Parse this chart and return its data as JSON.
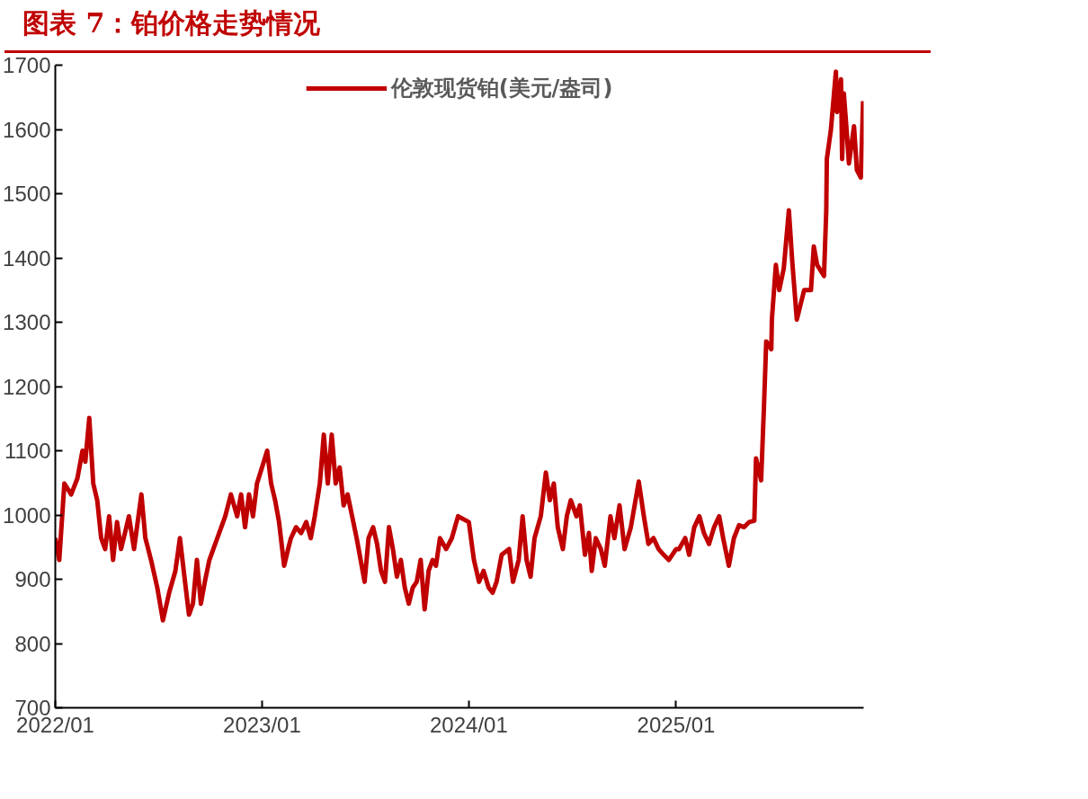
{
  "chart_data": {
    "type": "line",
    "title": "图表 7：铂价格走势情况",
    "x": [
      "2022-01-01",
      "2022-01-08",
      "2022-01-17",
      "2022-01-29",
      "2022-02-09",
      "2022-02-18",
      "2022-02-23",
      "2022-03-02",
      "2022-03-09",
      "2022-03-16",
      "2022-03-23",
      "2022-03-30",
      "2022-04-06",
      "2022-04-13",
      "2022-04-20",
      "2022-04-27",
      "2022-05-04",
      "2022-05-11",
      "2022-05-20",
      "2022-06-02",
      "2022-06-09",
      "2022-06-19",
      "2022-06-30",
      "2022-07-10",
      "2022-07-21",
      "2022-08-01",
      "2022-08-09",
      "2022-08-18",
      "2022-08-25",
      "2022-09-01",
      "2022-09-08",
      "2022-09-15",
      "2022-09-22",
      "2022-09-30",
      "2022-10-07",
      "2022-10-14",
      "2022-10-21",
      "2022-10-28",
      "2022-11-07",
      "2022-11-18",
      "2022-11-25",
      "2022-12-02",
      "2022-12-09",
      "2022-12-16",
      "2022-12-23",
      "2023-01-01",
      "2023-01-10",
      "2023-01-17",
      "2023-01-24",
      "2023-01-31",
      "2023-02-09",
      "2023-02-16",
      "2023-02-21",
      "2023-03-02",
      "2023-03-11",
      "2023-03-20",
      "2023-03-28",
      "2023-04-04",
      "2023-04-13",
      "2023-04-20",
      "2023-04-27",
      "2023-05-04",
      "2023-05-11",
      "2023-05-18",
      "2023-05-25",
      "2023-06-01",
      "2023-06-09",
      "2023-06-17",
      "2023-06-24",
      "2023-07-01",
      "2023-07-08",
      "2023-07-16",
      "2023-07-23",
      "2023-07-30",
      "2023-08-06",
      "2023-08-13",
      "2023-08-20",
      "2023-08-27",
      "2023-09-03",
      "2023-09-10",
      "2023-09-17",
      "2023-09-24",
      "2023-10-01",
      "2023-10-08",
      "2023-10-15",
      "2023-10-22",
      "2023-10-29",
      "2023-11-04",
      "2023-11-11",
      "2023-11-22",
      "2023-12-02",
      "2023-12-13",
      "2024-01-01",
      "2024-01-10",
      "2024-01-19",
      "2024-01-27",
      "2024-02-05",
      "2024-02-12",
      "2024-02-19",
      "2024-02-28",
      "2024-03-12",
      "2024-03-19",
      "2024-03-29",
      "2024-04-05",
      "2024-04-12",
      "2024-04-19",
      "2024-04-26",
      "2024-05-07",
      "2024-05-16",
      "2024-05-23",
      "2024-05-30",
      "2024-06-06",
      "2024-06-15",
      "2024-06-22",
      "2024-06-29",
      "2024-07-09",
      "2024-07-15",
      "2024-07-24",
      "2024-07-31",
      "2024-08-05",
      "2024-08-12",
      "2024-08-21",
      "2024-08-28",
      "2024-09-07",
      "2024-09-14",
      "2024-09-23",
      "2024-10-02",
      "2024-10-13",
      "2024-10-27",
      "2024-11-05",
      "2024-11-13",
      "2024-11-22",
      "2024-12-01",
      "2024-12-10",
      "2024-12-19",
      "2025-01-01",
      "2025-01-06",
      "2025-01-17",
      "2025-01-24",
      "2025-02-02",
      "2025-02-11",
      "2025-02-19",
      "2025-02-28",
      "2025-03-09",
      "2025-03-18",
      "2025-03-25",
      "2025-04-04",
      "2025-04-13",
      "2025-04-22",
      "2025-05-01",
      "2025-05-10",
      "2025-05-19",
      "2025-05-22",
      "2025-05-31",
      "2025-06-05",
      "2025-06-09",
      "2025-06-18",
      "2025-06-19",
      "2025-06-26",
      "2025-07-02",
      "2025-07-10",
      "2025-07-19",
      "2025-07-25",
      "2025-08-02",
      "2025-08-15",
      "2025-08-27",
      "2025-09-01",
      "2025-09-07",
      "2025-09-19",
      "2025-09-23",
      "2025-09-24",
      "2025-10-01",
      "2025-10-10",
      "2025-10-12",
      "2025-10-19",
      "2025-10-21",
      "2025-10-24",
      "2025-10-29",
      "2025-11-02",
      "2025-11-11",
      "2025-11-16",
      "2025-11-23",
      "2025-11-27"
    ],
    "series": [
      {
        "name": "伦敦现货铂(美元/盎司)",
        "color": "#c00000",
        "values": [
          964,
          930,
          1049,
          1032,
          1057,
          1100,
          1083,
          1151,
          1049,
          1023,
          964,
          947,
          998,
          930,
          989,
          947,
          972,
          998,
          947,
          1032,
          964,
          930,
          887,
          836,
          879,
          913,
          964,
          896,
          845,
          862,
          930,
          862,
          896,
          930,
          947,
          964,
          981,
          998,
          1032,
          998,
          1032,
          981,
          1032,
          998,
          1049,
          1074,
          1100,
          1049,
          1023,
          989,
          921,
          947,
          964,
          981,
          972,
          989,
          964,
          998,
          1049,
          1125,
          1049,
          1125,
          1049,
          1074,
          1015,
          1032,
          998,
          964,
          930,
          896,
          964,
          981,
          955,
          913,
          896,
          981,
          947,
          904,
          930,
          887,
          862,
          887,
          896,
          930,
          853,
          913,
          930,
          921,
          964,
          947,
          964,
          998,
          989,
          930,
          896,
          913,
          887,
          879,
          896,
          938,
          947,
          896,
          930,
          998,
          930,
          904,
          964,
          998,
          1066,
          1023,
          1049,
          981,
          947,
          998,
          1023,
          998,
          1015,
          938,
          972,
          913,
          964,
          947,
          921,
          998,
          964,
          1015,
          947,
          981,
          1052,
          998,
          955,
          964,
          947,
          938,
          930,
          947,
          947,
          964,
          938,
          981,
          998,
          972,
          955,
          981,
          998,
          964,
          921,
          964,
          984,
          981,
          989,
          991,
          1088,
          1054,
          1168,
          1270,
          1258,
          1304,
          1389,
          1350,
          1384,
          1474,
          1394,
          1304,
          1350,
          1350,
          1418,
          1389,
          1372,
          1474,
          1554,
          1598,
          1690,
          1627,
          1678,
          1554,
          1656,
          1598,
          1547,
          1605,
          1537,
          1525,
          1644
        ]
      }
    ],
    "xlim": [
      "2022-01-01",
      "2025-11-28"
    ],
    "xticks": [
      {
        "value": "2022-01-01",
        "label": "2022/01"
      },
      {
        "value": "2023-01-01",
        "label": "2023/01"
      },
      {
        "value": "2024-01-01",
        "label": "2024/01"
      },
      {
        "value": "2025-01-01",
        "label": "2025/01"
      }
    ],
    "ylim": [
      700,
      1700
    ],
    "yticks": [
      700,
      800,
      900,
      1000,
      1100,
      1200,
      1300,
      1400,
      1500,
      1600,
      1700
    ],
    "legend": "top",
    "line_style": "solid"
  }
}
